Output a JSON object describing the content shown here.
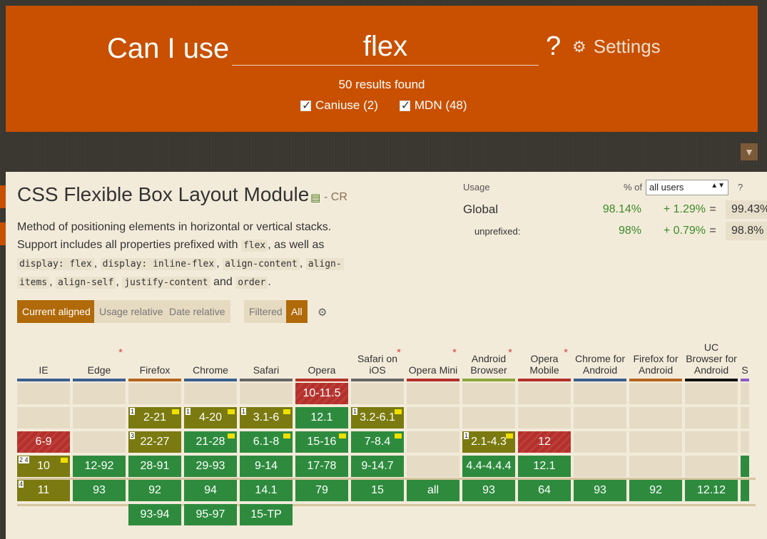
{
  "header": {
    "title_lead": "Can I use",
    "search_value": "flex",
    "question": "?",
    "settings_label": "Settings",
    "results_text": "50 results found",
    "filters": [
      {
        "label": "Caniuse (2)",
        "checked": true
      },
      {
        "label": "MDN (48)",
        "checked": true
      }
    ]
  },
  "feature": {
    "title": "CSS Flexible Box Layout Module",
    "status": "- CR",
    "desc_line1": "Method of positioning elements in horizontal or vertical stacks.",
    "desc_line2a": "Support includes all properties prefixed with ",
    "desc_code_flex": "flex",
    "desc_line2b": ", as well as",
    "codes": [
      "display: flex",
      "display: inline-flex",
      "align-content",
      "align-",
      "items",
      "align-self",
      "justify-content",
      "order"
    ],
    "and": "and",
    "period": "."
  },
  "usage": {
    "label": "Usage",
    "pct_of": "% of",
    "select_value": "all users",
    "help": "?",
    "rows": [
      {
        "name": "Global",
        "supported": "98.14%",
        "partial": "+ 1.29%",
        "eq": "=",
        "total": "99.43%"
      },
      {
        "name": "unprefixed:",
        "supported": "98%",
        "partial": "+ 0.79%",
        "eq": "=",
        "total": "98.8%"
      }
    ]
  },
  "buttons": {
    "current_aligned": "Current aligned",
    "usage_relative": "Usage relative",
    "date_relative": "Date relative",
    "filtered": "Filtered",
    "all": "All"
  },
  "browsers": [
    {
      "name": "IE",
      "star": "",
      "bar": "#3a5f8f"
    },
    {
      "name": "Edge",
      "star": "*",
      "bar": "#3a5f8f"
    },
    {
      "name": "Firefox",
      "star": "",
      "bar": "#b5651d"
    },
    {
      "name": "Chrome",
      "star": "",
      "bar": "#3a5f8f"
    },
    {
      "name": "Safari",
      "star": "",
      "bar": "#666666"
    },
    {
      "name": "Opera",
      "star": "",
      "bar": "#b5302b"
    },
    {
      "name": "Safari on iOS",
      "star": "*",
      "bar": "#666666"
    },
    {
      "name": "Opera Mini",
      "star": "*",
      "bar": "#b5302b"
    },
    {
      "name": "Android Browser",
      "star": "*",
      "bar": "#8aa63a"
    },
    {
      "name": "Opera Mobile",
      "star": "*",
      "bar": "#b5302b"
    },
    {
      "name": "Chrome for Android",
      "star": "",
      "bar": "#3a5f8f"
    },
    {
      "name": "Firefox for Android",
      "star": "",
      "bar": "#b5651d"
    },
    {
      "name": "UC Browser for Android",
      "star": "",
      "bar": "#111111"
    },
    {
      "name": "S",
      "star": "",
      "bar": "#8a5ac8"
    }
  ],
  "cells": [
    {
      "col": 5,
      "row": 0,
      "t": "10-11.5",
      "s": "n"
    },
    {
      "col": 2,
      "row": 1,
      "t": "2-21",
      "s": "a",
      "note": "1",
      "flag": true
    },
    {
      "col": 3,
      "row": 1,
      "t": "4-20",
      "s": "a",
      "note": "1",
      "flag": true
    },
    {
      "col": 4,
      "row": 1,
      "t": "3.1-6",
      "s": "a",
      "note": "1",
      "flag": true
    },
    {
      "col": 5,
      "row": 1,
      "t": "12.1",
      "s": "y"
    },
    {
      "col": 6,
      "row": 1,
      "t": "3.2-6.1",
      "s": "a",
      "note": "1",
      "flag": true
    },
    {
      "col": 0,
      "row": 2,
      "t": "6-9",
      "s": "n"
    },
    {
      "col": 2,
      "row": 2,
      "t": "22-27",
      "s": "a",
      "note": "3"
    },
    {
      "col": 3,
      "row": 2,
      "t": "21-28",
      "s": "y",
      "flag": true
    },
    {
      "col": 4,
      "row": 2,
      "t": "6.1-8",
      "s": "y",
      "flag": true
    },
    {
      "col": 5,
      "row": 2,
      "t": "15-16",
      "s": "y",
      "flag": true
    },
    {
      "col": 6,
      "row": 2,
      "t": "7-8.4",
      "s": "y",
      "flag": true
    },
    {
      "col": 8,
      "row": 2,
      "t": "2.1-4.3",
      "s": "a",
      "note": "1",
      "flag": true
    },
    {
      "col": 9,
      "row": 2,
      "t": "12",
      "s": "n"
    },
    {
      "col": 0,
      "row": 3,
      "t": "10",
      "s": "a",
      "note": "2 4",
      "flag": true
    },
    {
      "col": 1,
      "row": 3,
      "t": "12-92",
      "s": "y"
    },
    {
      "col": 2,
      "row": 3,
      "t": "28-91",
      "s": "y"
    },
    {
      "col": 3,
      "row": 3,
      "t": "29-93",
      "s": "y"
    },
    {
      "col": 4,
      "row": 3,
      "t": "9-14",
      "s": "y"
    },
    {
      "col": 5,
      "row": 3,
      "t": "17-78",
      "s": "y"
    },
    {
      "col": 6,
      "row": 3,
      "t": "9-14.7",
      "s": "y"
    },
    {
      "col": 8,
      "row": 3,
      "t": "4.4-4.4.4",
      "s": "y"
    },
    {
      "col": 9,
      "row": 3,
      "t": "12.1",
      "s": "y"
    },
    {
      "col": 0,
      "row": 4,
      "t": "11",
      "s": "a",
      "note": "4"
    },
    {
      "col": 1,
      "row": 4,
      "t": "93",
      "s": "y"
    },
    {
      "col": 2,
      "row": 4,
      "t": "92",
      "s": "y"
    },
    {
      "col": 3,
      "row": 4,
      "t": "94",
      "s": "y"
    },
    {
      "col": 4,
      "row": 4,
      "t": "14.1",
      "s": "y"
    },
    {
      "col": 5,
      "row": 4,
      "t": "79",
      "s": "y"
    },
    {
      "col": 6,
      "row": 4,
      "t": "15",
      "s": "y"
    },
    {
      "col": 7,
      "row": 4,
      "t": "all",
      "s": "y"
    },
    {
      "col": 8,
      "row": 4,
      "t": "93",
      "s": "y"
    },
    {
      "col": 9,
      "row": 4,
      "t": "64",
      "s": "y"
    },
    {
      "col": 10,
      "row": 4,
      "t": "93",
      "s": "y"
    },
    {
      "col": 11,
      "row": 4,
      "t": "92",
      "s": "y"
    },
    {
      "col": 12,
      "row": 4,
      "t": "12.12",
      "s": "y"
    },
    {
      "col": 2,
      "row": 5,
      "t": "93-94",
      "s": "y"
    },
    {
      "col": 3,
      "row": 5,
      "t": "95-97",
      "s": "y"
    },
    {
      "col": 4,
      "row": 5,
      "t": "15-TP",
      "s": "y"
    }
  ],
  "colors": {
    "brand": "#c85000",
    "supported": "#2e8b3e",
    "partial": "#7a7a10",
    "unsupported": "#b5302b"
  }
}
